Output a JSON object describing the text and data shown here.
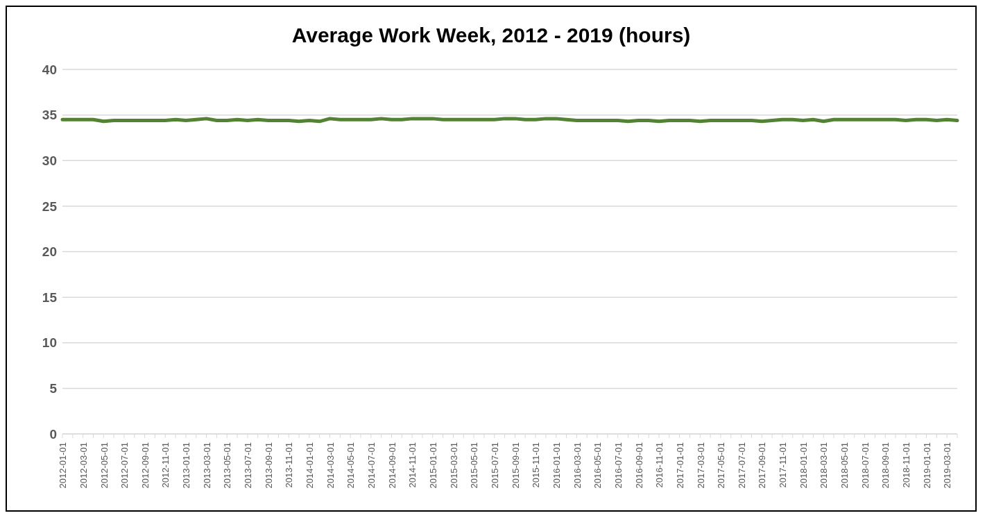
{
  "chart_data": {
    "type": "line",
    "title": "Average Work Week, 2012 - 2019 (hours)",
    "categories": [
      "2012-01-01",
      null,
      "2012-03-01",
      null,
      "2012-05-01",
      null,
      "2012-07-01",
      null,
      "2012-09-01",
      null,
      "2012-11-01",
      null,
      "2013-01-01",
      null,
      "2013-03-01",
      null,
      "2013-05-01",
      null,
      "2013-07-01",
      null,
      "2013-09-01",
      null,
      "2013-11-01",
      null,
      "2014-01-01",
      null,
      "2014-03-01",
      null,
      "2014-05-01",
      null,
      "2014-07-01",
      null,
      "2014-09-01",
      null,
      "2014-11-01",
      null,
      "2015-01-01",
      null,
      "2015-03-01",
      null,
      "2015-05-01",
      null,
      "2015-07-01",
      null,
      "2015-09-01",
      null,
      "2015-11-01",
      null,
      "2016-01-01",
      null,
      "2016-03-01",
      null,
      "2016-05-01",
      null,
      "2016-07-01",
      null,
      "2016-09-01",
      null,
      "2016-11-01",
      null,
      "2017-01-01",
      null,
      "2017-03-01",
      null,
      "2017-05-01",
      null,
      "2017-07-01",
      null,
      "2017-09-01",
      null,
      "2017-11-01",
      null,
      "2018-01-01",
      null,
      "2018-03-01",
      null,
      "2018-05-01",
      null,
      "2018-07-01",
      null,
      "2018-09-01",
      null,
      "2018-11-01",
      null,
      "2019-01-01",
      null,
      "2019-03-01",
      null
    ],
    "series": [
      {
        "color": "#548235",
        "values": [
          34.5,
          34.5,
          34.5,
          34.5,
          34.3,
          34.4,
          34.4,
          34.4,
          34.4,
          34.4,
          34.4,
          34.5,
          34.4,
          34.5,
          34.6,
          34.4,
          34.4,
          34.5,
          34.4,
          34.5,
          34.4,
          34.4,
          34.4,
          34.3,
          34.4,
          34.3,
          34.6,
          34.5,
          34.5,
          34.5,
          34.5,
          34.6,
          34.5,
          34.5,
          34.6,
          34.6,
          34.6,
          34.5,
          34.5,
          34.5,
          34.5,
          34.5,
          34.5,
          34.6,
          34.6,
          34.5,
          34.5,
          34.6,
          34.6,
          34.5,
          34.4,
          34.4,
          34.4,
          34.4,
          34.4,
          34.3,
          34.4,
          34.4,
          34.3,
          34.4,
          34.4,
          34.4,
          34.3,
          34.4,
          34.4,
          34.4,
          34.4,
          34.4,
          34.3,
          34.4,
          34.5,
          34.5,
          34.4,
          34.5,
          34.3,
          34.5,
          34.5,
          34.5,
          34.5,
          34.5,
          34.5,
          34.5,
          34.4,
          34.5,
          34.5,
          34.4,
          34.5,
          34.4
        ]
      }
    ],
    "ylim": [
      0,
      40
    ],
    "yticks": [
      0,
      5,
      10,
      15,
      20,
      25,
      30,
      35,
      40
    ],
    "grid": "y",
    "legend": false,
    "marker": "none",
    "line_style": "solid"
  }
}
